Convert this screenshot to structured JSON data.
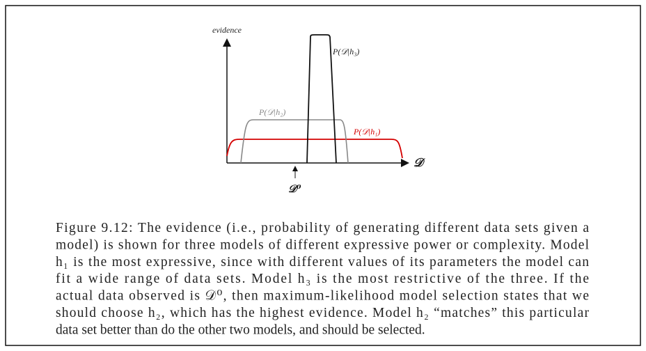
{
  "figure": {
    "axis_label": "evidence",
    "curve_labels": [
      "P(𝒟|h₃)",
      "P(𝒟|h₂)",
      "P(𝒟|h₁)"
    ],
    "x_label": "𝒟",
    "marker_label": "𝒟⁰"
  },
  "caption": {
    "lines": [
      "Figure 9.12: The evidence (i.e., probability of generating different data sets given a",
      "model) is shown for three models of different expressive power or complexity. Model",
      "h₁ is the most expressive, since with different values of its parameters the model can",
      "fit a wide range of data sets. Model h₃ is the most restrictive of the three. If the",
      "actual data observed is 𝒟⁰, then maximum-likelihood model selection states that we",
      "should choose h₂, which has the highest evidence. Model h₂ “matches” this particular",
      "data set better than do the other two models, and should be selected."
    ]
  }
}
